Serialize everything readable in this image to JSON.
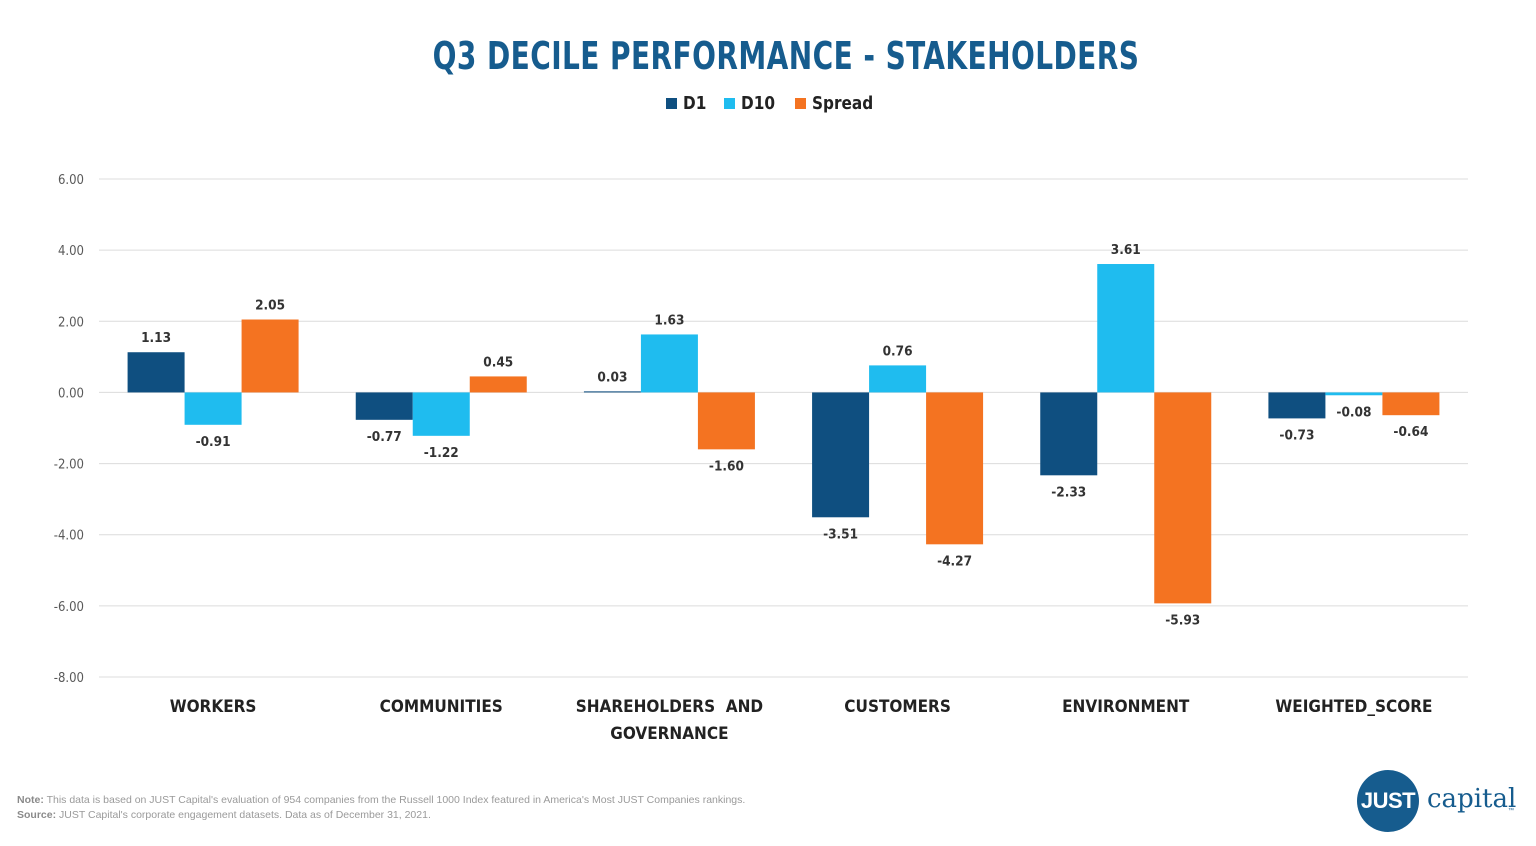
{
  "chart_data": {
    "type": "bar",
    "title": "Q3 DECILE PERFORMANCE - STAKEHOLDERS",
    "categories": [
      "WORKERS",
      "COMMUNITIES",
      "SHAREHOLDERS  AND GOVERNANCE",
      "CUSTOMERS",
      "ENVIRONMENT",
      "WEIGHTED_SCORE"
    ],
    "category_lines": [
      [
        "WORKERS"
      ],
      [
        "COMMUNITIES"
      ],
      [
        "SHAREHOLDERS  AND",
        "GOVERNANCE"
      ],
      [
        "CUSTOMERS"
      ],
      [
        "ENVIRONMENT"
      ],
      [
        "WEIGHTED_SCORE"
      ]
    ],
    "series": [
      {
        "name": "D1",
        "color": "#0f4f80",
        "values": [
          1.13,
          -0.77,
          0.03,
          -3.51,
          -2.33,
          -0.73
        ],
        "labels": [
          "1.13",
          "-0.77",
          "0.03",
          "-3.51",
          "-2.33",
          "-0.73"
        ]
      },
      {
        "name": "D10",
        "color": "#1fbcef",
        "values": [
          -0.91,
          -1.22,
          1.63,
          0.76,
          3.61,
          -0.08
        ],
        "labels": [
          "-0.91",
          "-1.22",
          "1.63",
          "0.76",
          "3.61",
          "-0.08"
        ]
      },
      {
        "name": "Spread",
        "color": "#f47321",
        "values": [
          2.05,
          0.45,
          -1.6,
          -4.27,
          -5.93,
          -0.64
        ],
        "labels": [
          "2.05",
          "0.45",
          "-1.60",
          "-4.27",
          "-5.93",
          "-0.64"
        ]
      }
    ],
    "yticks": [
      "6.00",
      "4.00",
      "2.00",
      "0.00",
      "-2.00",
      "-4.00",
      "-6.00",
      "-8.00"
    ],
    "ylim": [
      -8,
      6
    ],
    "xlabel": "",
    "ylabel": "",
    "grid": true,
    "legend_position": "top-center"
  },
  "footer": {
    "note_label": "Note:",
    "note_text": " This data is based on JUST Capital's evaluation of 954 companies from the Russell 1000 Index featured in America's Most JUST Companies rankings.",
    "source_label": "Source:",
    "source_text": " JUST Capital's corporate engagement datasets. Data as of December 31, 2021."
  },
  "logo": {
    "mark": "JUST",
    "word": "capital",
    "tm": "™"
  }
}
